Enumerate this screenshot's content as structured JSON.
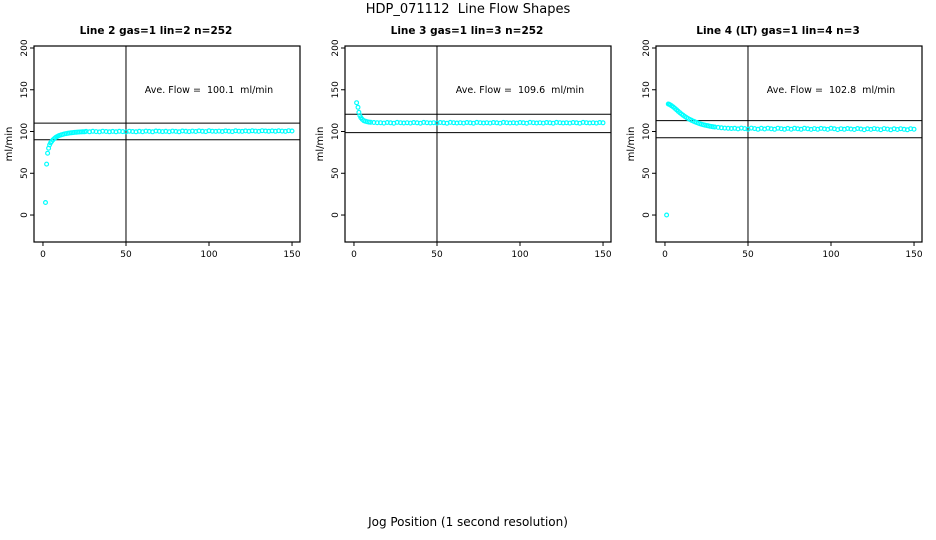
{
  "figure": {
    "title": "HDP_071112  Line Flow Shapes",
    "xlabel": "Jog Position (1 second resolution)",
    "point_color": "#00ffff",
    "axis_color": "#000000",
    "background": "#ffffff"
  },
  "chart_data": [
    {
      "type": "scatter",
      "title": "Line 2 gas=1 lin=2 n=252",
      "ylabel": "ml/min",
      "annotation": "Ave. Flow =  100.1  ml/min",
      "ave_flow_ml_min": 100.1,
      "n": 252,
      "xlim": [
        -5.4,
        154.8
      ],
      "ylim": [
        -32.3,
        202.4
      ],
      "xticks": [
        0,
        50,
        100,
        150
      ],
      "yticks": [
        0,
        50,
        100,
        150,
        200
      ],
      "ref_lines_y": [
        110.1,
        90.1
      ],
      "ref_line_x": 50,
      "grid": false,
      "points": [
        [
          1.5,
          15
        ],
        [
          2.2,
          61
        ],
        [
          2.8,
          74
        ],
        [
          3.4,
          80
        ],
        [
          4,
          84
        ],
        [
          4.6,
          86.5
        ],
        [
          5.2,
          88
        ],
        [
          6,
          90
        ],
        [
          6.8,
          91.5
        ],
        [
          7.6,
          92.8
        ],
        [
          8.4,
          93.8
        ],
        [
          9.2,
          94.6
        ],
        [
          10,
          95.3
        ],
        [
          11,
          96
        ],
        [
          12,
          96.6
        ],
        [
          13,
          97.1
        ],
        [
          14,
          97.5
        ],
        [
          15,
          97.9
        ],
        [
          16,
          98.2
        ],
        [
          17,
          98.5
        ],
        [
          18,
          98.7
        ],
        [
          19,
          98.9
        ],
        [
          20,
          99.1
        ],
        [
          21,
          99.3
        ],
        [
          22,
          99.4
        ],
        [
          23,
          99.5
        ],
        [
          24,
          99.6
        ],
        [
          25,
          99.7
        ],
        [
          26,
          100.1
        ],
        [
          28,
          99.6
        ],
        [
          30,
          100.3
        ],
        [
          32,
          99.9
        ],
        [
          34,
          99.5
        ],
        [
          36,
          100.4
        ],
        [
          38,
          100.0
        ],
        [
          40,
          99.7
        ],
        [
          42,
          100.1
        ],
        [
          44,
          99.6
        ],
        [
          46,
          100.3
        ],
        [
          48,
          99.9
        ],
        [
          50,
          99.5
        ],
        [
          52,
          100.4
        ],
        [
          54,
          100.0
        ],
        [
          56,
          99.7
        ],
        [
          58,
          100.3
        ],
        [
          60,
          99.8
        ],
        [
          62,
          100.5
        ],
        [
          64,
          100.1
        ],
        [
          66,
          99.7
        ],
        [
          68,
          100.6
        ],
        [
          70,
          100.2
        ],
        [
          72,
          99.9
        ],
        [
          74,
          100.3
        ],
        [
          76,
          99.8
        ],
        [
          78,
          100.5
        ],
        [
          80,
          100.1
        ],
        [
          82,
          99.7
        ],
        [
          84,
          100.6
        ],
        [
          86,
          100.2
        ],
        [
          88,
          99.9
        ],
        [
          90,
          100.5
        ],
        [
          92,
          100.0
        ],
        [
          94,
          100.7
        ],
        [
          96,
          100.3
        ],
        [
          98,
          99.9
        ],
        [
          100,
          100.8
        ],
        [
          102,
          100.4
        ],
        [
          104,
          100.1
        ],
        [
          106,
          100.5
        ],
        [
          108,
          100.0
        ],
        [
          110,
          100.7
        ],
        [
          112,
          100.3
        ],
        [
          114,
          99.9
        ],
        [
          116,
          100.8
        ],
        [
          118,
          100.4
        ],
        [
          120,
          100.1
        ],
        [
          122,
          100.7
        ],
        [
          124,
          100.2
        ],
        [
          126,
          100.9
        ],
        [
          128,
          100.5
        ],
        [
          130,
          100.1
        ],
        [
          132,
          101.0
        ],
        [
          134,
          100.6
        ],
        [
          136,
          100.3
        ],
        [
          138,
          100.7
        ],
        [
          140,
          100.2
        ],
        [
          142,
          100.9
        ],
        [
          144,
          100.5
        ],
        [
          146,
          100.1
        ],
        [
          148,
          101.0
        ],
        [
          150,
          100.6
        ]
      ]
    },
    {
      "type": "scatter",
      "title": "Line 3 gas=1 lin=3 n=252",
      "ylabel": "ml/min",
      "annotation": "Ave. Flow =  109.6  ml/min",
      "ave_flow_ml_min": 109.6,
      "n": 252,
      "xlim": [
        -5.4,
        154.8
      ],
      "ylim": [
        -32.3,
        202.4
      ],
      "xticks": [
        0,
        50,
        100,
        150
      ],
      "yticks": [
        0,
        50,
        100,
        150,
        200
      ],
      "ref_lines_y": [
        120.6,
        98.6
      ],
      "ref_line_x": 50,
      "grid": false,
      "points": [
        [
          1.6,
          134.5
        ],
        [
          2.4,
          129
        ],
        [
          3,
          123
        ],
        [
          3.6,
          119
        ],
        [
          4.2,
          116.5
        ],
        [
          5,
          114.5
        ],
        [
          6,
          113
        ],
        [
          7,
          112.2
        ],
        [
          8,
          111.7
        ],
        [
          9,
          111.3
        ],
        [
          10,
          111
        ],
        [
          12,
          110.8
        ],
        [
          14,
          110.6
        ],
        [
          16,
          110.6
        ],
        [
          18,
          110.1
        ],
        [
          20,
          110.8
        ],
        [
          22,
          110.4
        ],
        [
          24,
          110.0
        ],
        [
          26,
          110.9
        ],
        [
          28,
          110.5
        ],
        [
          30,
          110.2
        ],
        [
          32,
          110.6
        ],
        [
          34,
          110.1
        ],
        [
          36,
          110.8
        ],
        [
          38,
          110.4
        ],
        [
          40,
          110.0
        ],
        [
          42,
          110.9
        ],
        [
          44,
          110.5
        ],
        [
          46,
          110.2
        ],
        [
          48,
          110.6
        ],
        [
          50,
          110.1
        ],
        [
          52,
          110.8
        ],
        [
          54,
          110.4
        ],
        [
          56,
          110.0
        ],
        [
          58,
          110.9
        ],
        [
          60,
          110.5
        ],
        [
          62,
          110.2
        ],
        [
          64,
          110.6
        ],
        [
          66,
          110.1
        ],
        [
          68,
          110.8
        ],
        [
          70,
          110.4
        ],
        [
          72,
          110.0
        ],
        [
          74,
          110.9
        ],
        [
          76,
          110.5
        ],
        [
          78,
          110.2
        ],
        [
          80,
          110.6
        ],
        [
          82,
          110.1
        ],
        [
          84,
          110.8
        ],
        [
          86,
          110.4
        ],
        [
          88,
          110.0
        ],
        [
          90,
          110.9
        ],
        [
          92,
          110.5
        ],
        [
          94,
          110.2
        ],
        [
          96,
          110.6
        ],
        [
          98,
          110.1
        ],
        [
          100,
          110.8
        ],
        [
          102,
          110.4
        ],
        [
          104,
          110.0
        ],
        [
          106,
          110.9
        ],
        [
          108,
          110.5
        ],
        [
          110,
          110.2
        ],
        [
          112,
          110.6
        ],
        [
          114,
          110.1
        ],
        [
          116,
          110.8
        ],
        [
          118,
          110.4
        ],
        [
          120,
          110.0
        ],
        [
          122,
          110.9
        ],
        [
          124,
          110.5
        ],
        [
          126,
          110.2
        ],
        [
          128,
          110.6
        ],
        [
          130,
          110.1
        ],
        [
          132,
          110.8
        ],
        [
          134,
          110.4
        ],
        [
          136,
          110.0
        ],
        [
          138,
          110.9
        ],
        [
          140,
          110.5
        ],
        [
          142,
          110.2
        ],
        [
          144,
          110.6
        ],
        [
          146,
          110.1
        ],
        [
          148,
          110.8
        ],
        [
          150,
          110.4
        ]
      ]
    },
    {
      "type": "scatter",
      "title": "Line 4 (LT) gas=1 lin=4 n=3",
      "ylabel": "ml/min",
      "annotation": "Ave. Flow =  102.8  ml/min",
      "ave_flow_ml_min": 102.8,
      "n": 3,
      "xlim": [
        -5.4,
        154.8
      ],
      "ylim": [
        -32.3,
        202.4
      ],
      "xticks": [
        0,
        50,
        100,
        150
      ],
      "yticks": [
        0,
        50,
        100,
        150,
        200
      ],
      "ref_lines_y": [
        113.1,
        92.5
      ],
      "ref_line_x": 50,
      "grid": false,
      "points": [
        [
          1,
          0
        ],
        [
          2,
          133
        ],
        [
          2.6,
          132.5
        ],
        [
          3.2,
          131.8
        ],
        [
          4,
          130.8
        ],
        [
          5,
          129.3
        ],
        [
          6,
          127.7
        ],
        [
          7,
          126
        ],
        [
          8,
          124.2
        ],
        [
          9,
          122.5
        ],
        [
          10,
          120.9
        ],
        [
          11,
          119.4
        ],
        [
          12,
          118
        ],
        [
          13,
          116.7
        ],
        [
          14,
          115.5
        ],
        [
          15,
          114.4
        ],
        [
          16,
          113.4
        ],
        [
          17,
          112.5
        ],
        [
          18,
          111.6
        ],
        [
          19,
          110.8
        ],
        [
          20,
          110.1
        ],
        [
          21,
          109.4
        ],
        [
          22,
          108.8
        ],
        [
          23,
          108.2
        ],
        [
          24,
          107.7
        ],
        [
          25,
          107.2
        ],
        [
          26,
          106.8
        ],
        [
          27,
          106.4
        ],
        [
          28,
          106
        ],
        [
          29,
          105.7
        ],
        [
          30,
          105.4
        ],
        [
          32,
          104.9
        ],
        [
          34,
          104.5
        ],
        [
          36,
          104.1
        ],
        [
          38,
          103.8
        ],
        [
          40,
          103.6
        ],
        [
          42,
          103.9
        ],
        [
          44,
          103.1
        ],
        [
          46,
          104.1
        ],
        [
          48,
          103.5
        ],
        [
          50,
          102.8
        ],
        [
          52,
          104.1
        ],
        [
          54,
          103.5
        ],
        [
          56,
          102.7
        ],
        [
          58,
          103.8
        ],
        [
          60,
          103.0
        ],
        [
          62,
          104.0
        ],
        [
          64,
          103.3
        ],
        [
          66,
          102.7
        ],
        [
          68,
          104.0
        ],
        [
          70,
          103.4
        ],
        [
          72,
          102.6
        ],
        [
          74,
          103.7
        ],
        [
          76,
          102.8
        ],
        [
          78,
          103.8
        ],
        [
          80,
          103.2
        ],
        [
          82,
          102.6
        ],
        [
          84,
          103.9
        ],
        [
          86,
          103.3
        ],
        [
          88,
          102.5
        ],
        [
          90,
          103.5
        ],
        [
          92,
          102.7
        ],
        [
          94,
          103.7
        ],
        [
          96,
          103.1
        ],
        [
          98,
          102.5
        ],
        [
          100,
          103.8
        ],
        [
          102,
          103.2
        ],
        [
          104,
          102.3
        ],
        [
          106,
          103.4
        ],
        [
          108,
          102.6
        ],
        [
          110,
          103.6
        ],
        [
          112,
          103.0
        ],
        [
          114,
          102.4
        ],
        [
          116,
          103.6
        ],
        [
          118,
          103.0
        ],
        [
          120,
          102.2
        ],
        [
          122,
          103.3
        ],
        [
          124,
          102.5
        ],
        [
          126,
          103.5
        ],
        [
          128,
          102.9
        ],
        [
          130,
          102.2
        ],
        [
          132,
          103.5
        ],
        [
          134,
          102.9
        ],
        [
          136,
          102.1
        ],
        [
          138,
          103.2
        ],
        [
          140,
          102.4
        ],
        [
          142,
          103.4
        ],
        [
          144,
          102.7
        ],
        [
          146,
          102.1
        ],
        [
          148,
          103.4
        ],
        [
          150,
          102.8
        ]
      ]
    }
  ]
}
